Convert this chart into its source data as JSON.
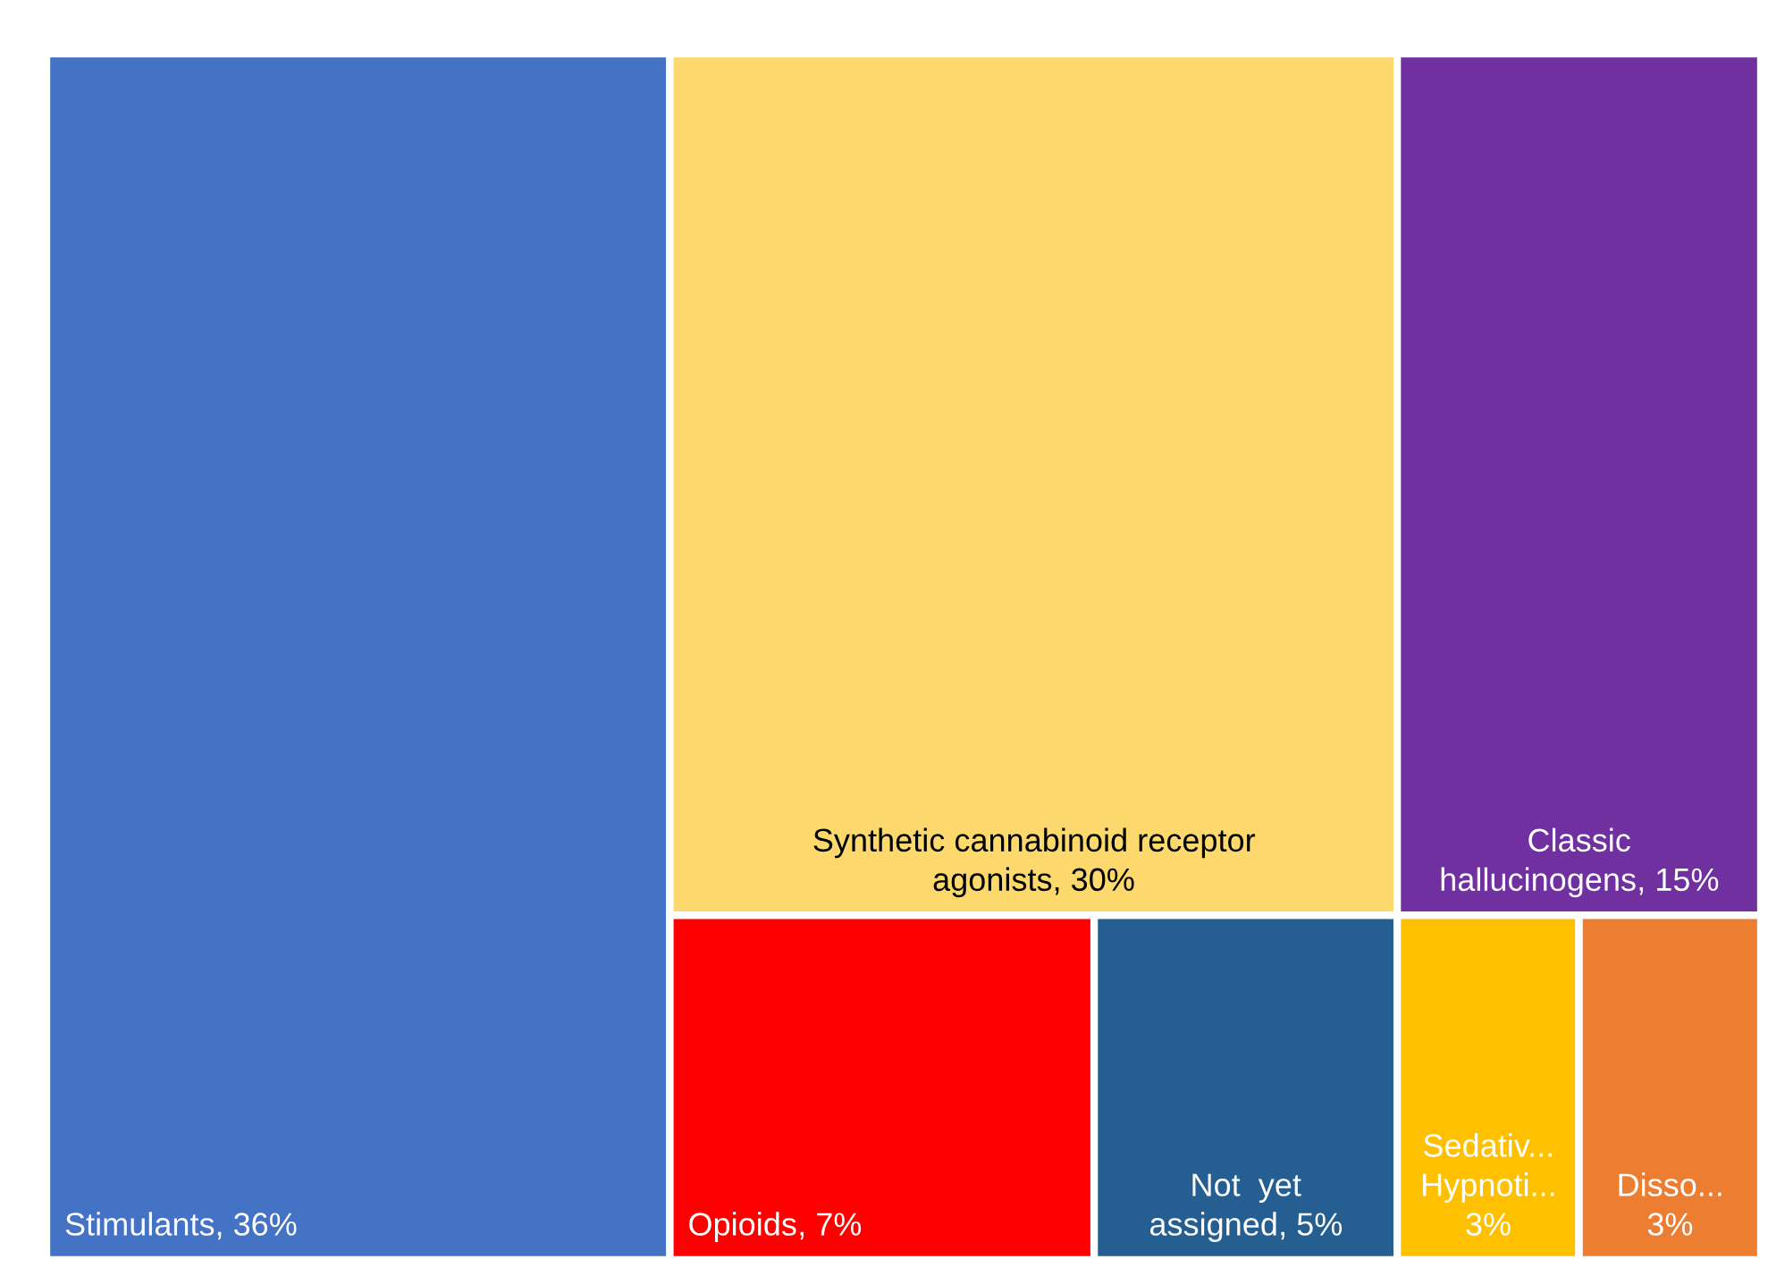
{
  "chart_data": {
    "type": "other",
    "categories": [
      "Stimulants",
      "Synthetic cannabinoid receptor agonists",
      "Classic hallucinogens",
      "Opioids",
      "Not  yet assigned",
      "Sedativ... Hypnoti...",
      "Disso..."
    ],
    "values": [
      36,
      30,
      15,
      7,
      5,
      3,
      3
    ],
    "value_labels": [
      ", 36%",
      ", 30%",
      ", 15%",
      ", 7%",
      ", 5%",
      "3%",
      "3%"
    ],
    "colors": [
      "#4472c4",
      "#fdd86c",
      "#7030a0",
      "#ff0000",
      "#255e91",
      "#ffc000",
      "#ed7d31"
    ]
  }
}
